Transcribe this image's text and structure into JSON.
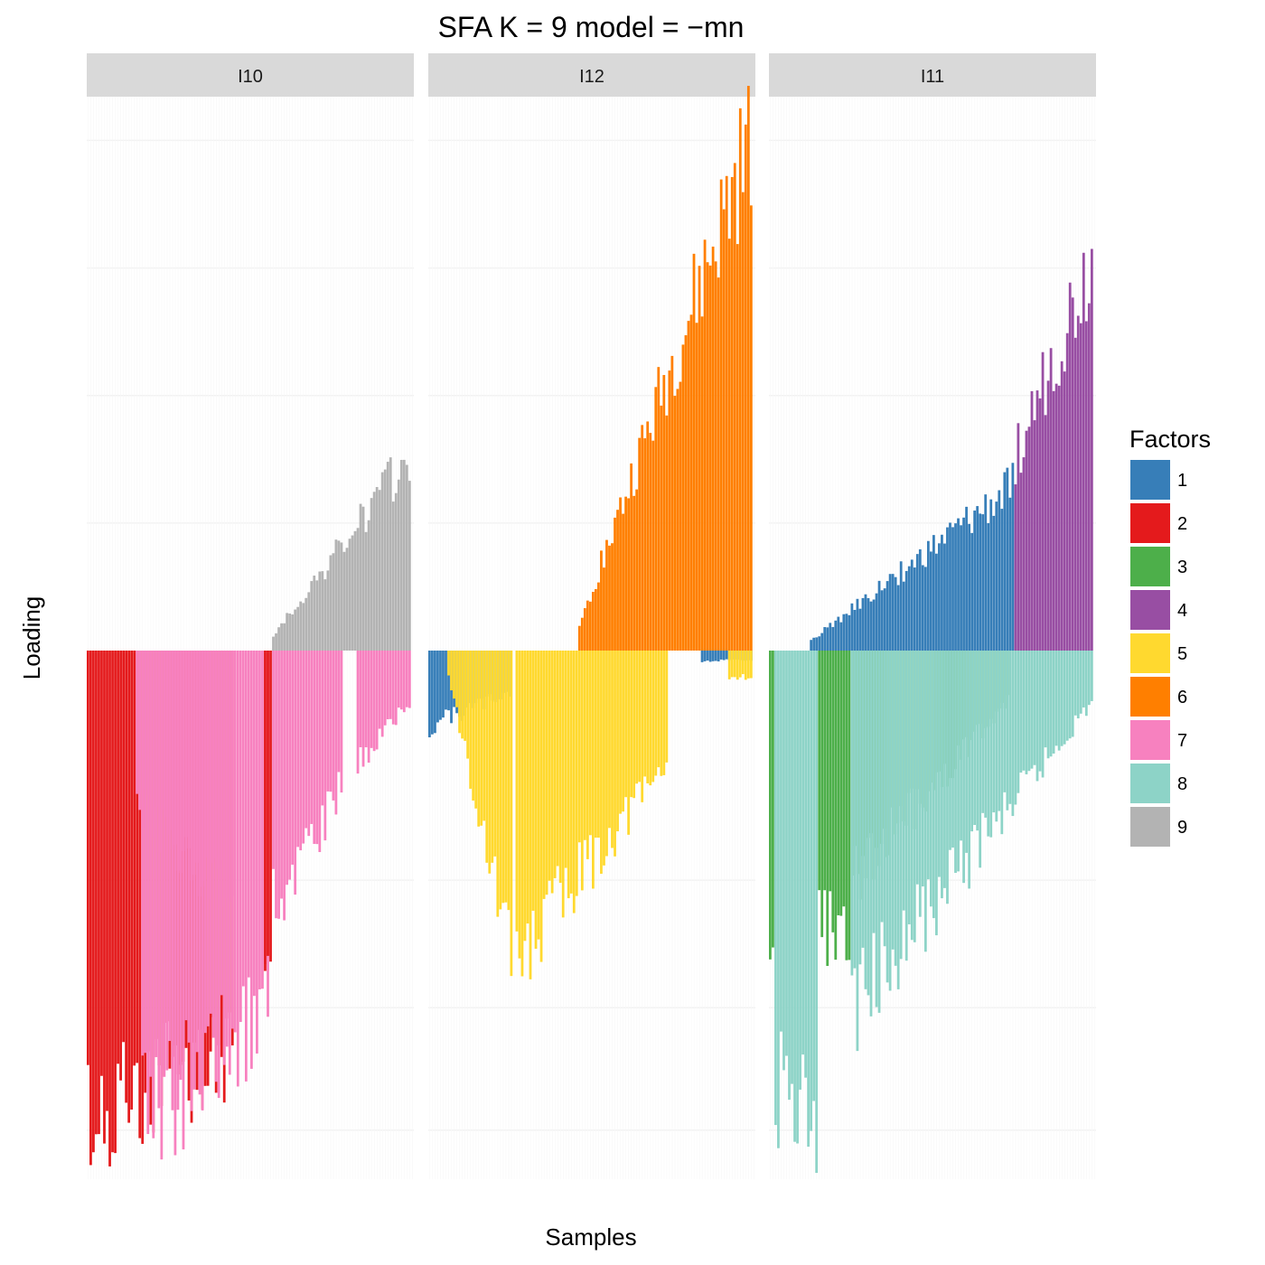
{
  "chart_data": {
    "type": "bar",
    "title": "SFA K = 9 model =  −mn",
    "xlabel": "Samples",
    "ylabel": "Loading",
    "facets": [
      "I10",
      "I12",
      "I11"
    ],
    "legend": {
      "title": "Factors",
      "position": "right",
      "entries": [
        {
          "label": "1",
          "color": "#377EB8"
        },
        {
          "label": "2",
          "color": "#E41A1C"
        },
        {
          "label": "3",
          "color": "#4DAF4A"
        },
        {
          "label": "4",
          "color": "#984EA3"
        },
        {
          "label": "5",
          "color": "#FFD92F"
        },
        {
          "label": "6",
          "color": "#FF7F00"
        },
        {
          "label": "7",
          "color": "#F781BF"
        },
        {
          "label": "8",
          "color": "#8DD3C7"
        },
        {
          "label": "9",
          "color": "#B3B3B3"
        }
      ]
    },
    "ylim": [
      -1.07,
      1.02
    ],
    "grid": true,
    "ticks_labeled": false,
    "samples_per_facet": 120,
    "series": [
      {
        "facet": "I10",
        "components": [
          {
            "factor": "2",
            "sign": "negative",
            "from": 0,
            "to": 54,
            "start": 0.93,
            "end": 0.78
          },
          {
            "factor": "7",
            "sign": "negative",
            "from": 18,
            "to": 54,
            "start": 0.3,
            "end": 0.5
          },
          {
            "factor": "7",
            "sign": "negative",
            "from": 20,
            "to": 67,
            "start": 0.93,
            "end": 0.7
          },
          {
            "factor": "2",
            "sign": "negative",
            "from": 65,
            "to": 68,
            "start": 0.65,
            "end": 0.65
          },
          {
            "factor": "7",
            "sign": "negative",
            "from": 68,
            "to": 94,
            "start": 0.5,
            "end": 0.27
          },
          {
            "factor": "7",
            "sign": "negative",
            "from": 99,
            "to": 119,
            "start": 0.22,
            "end": 0.1
          },
          {
            "factor": "9",
            "sign": "positive",
            "from": 68,
            "to": 119,
            "start": 0.03,
            "end": 0.38
          }
        ]
      },
      {
        "facet": "I12",
        "components": [
          {
            "factor": "1",
            "sign": "negative",
            "from": 0,
            "to": 30,
            "start": 0.15,
            "end": 0.08
          },
          {
            "factor": "5",
            "sign": "negative",
            "from": 7,
            "to": 31,
            "start": 0.05,
            "end": 0.6
          },
          {
            "factor": "5",
            "sign": "negative",
            "from": 32,
            "to": 88,
            "start": 0.6,
            "end": 0.22
          },
          {
            "factor": "1",
            "sign": "negative",
            "from": 100,
            "to": 119,
            "start": 0.02,
            "end": 0.02
          },
          {
            "factor": "5",
            "sign": "negative",
            "from": 110,
            "to": 119,
            "start": 0.05,
            "end": 0.05
          },
          {
            "factor": "6",
            "sign": "positive",
            "from": 55,
            "to": 119,
            "start": 0.05,
            "end": 1.0
          }
        ]
      },
      {
        "facet": "I11",
        "components": [
          {
            "factor": "8",
            "sign": "negative",
            "from": 2,
            "to": 18,
            "start": 0.85,
            "end": 0.96
          },
          {
            "factor": "3",
            "sign": "negative",
            "from": 0,
            "to": 2,
            "start": 0.6,
            "end": 0.6
          },
          {
            "factor": "3",
            "sign": "negative",
            "from": 18,
            "to": 30,
            "start": 0.55,
            "end": 0.55
          },
          {
            "factor": "3",
            "sign": "negative",
            "from": 30,
            "to": 88,
            "start": 0.45,
            "end": 0.1
          },
          {
            "factor": "8",
            "sign": "negative",
            "from": 30,
            "to": 119,
            "start": 0.7,
            "end": 0.1
          },
          {
            "factor": "1",
            "sign": "positive",
            "from": 15,
            "to": 90,
            "start": 0.02,
            "end": 0.32
          },
          {
            "factor": "4",
            "sign": "positive",
            "from": 90,
            "to": 119,
            "start": 0.38,
            "end": 0.77
          }
        ]
      }
    ]
  }
}
